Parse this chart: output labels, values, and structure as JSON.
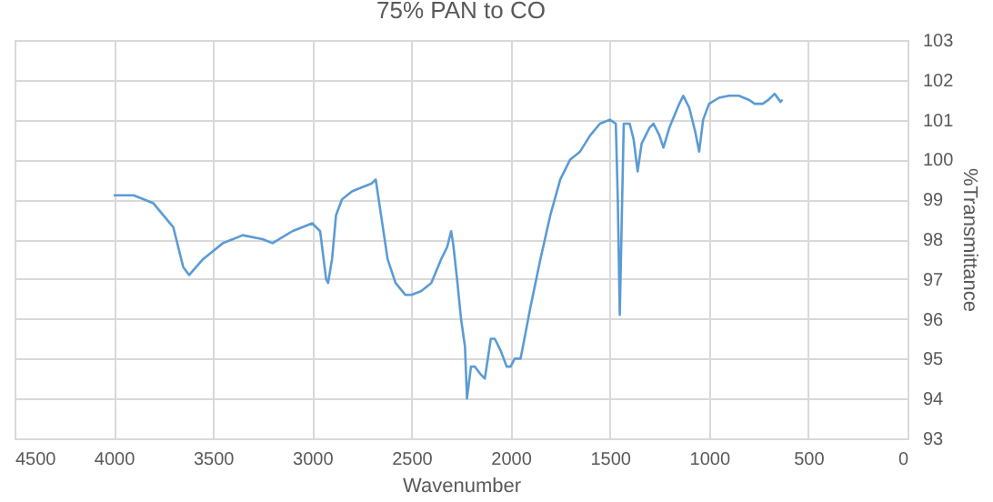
{
  "chart_data": {
    "type": "line",
    "title": "75% PAN to CO",
    "xlabel": "Wavenumber",
    "ylabel": "%Transmittance",
    "grid": true,
    "xlim": [
      4500,
      0
    ],
    "xticks": [
      4500,
      4000,
      3500,
      3000,
      2500,
      2000,
      1500,
      1000,
      500,
      0
    ],
    "ylim": [
      93,
      103
    ],
    "yticks": [
      93,
      94,
      95,
      96,
      97,
      98,
      99,
      100,
      101,
      102,
      103
    ],
    "series": [
      {
        "color": "#5b9bd5",
        "x": [
          4000,
          3900,
          3800,
          3700,
          3650,
          3620,
          3550,
          3450,
          3350,
          3250,
          3200,
          3100,
          3000,
          2960,
          2930,
          2920,
          2900,
          2880,
          2850,
          2800,
          2750,
          2700,
          2680,
          2650,
          2620,
          2580,
          2530,
          2500,
          2450,
          2400,
          2350,
          2320,
          2300,
          2290,
          2270,
          2250,
          2230,
          2220,
          2200,
          2180,
          2150,
          2130,
          2100,
          2080,
          2050,
          2020,
          2000,
          1980,
          1950,
          1900,
          1850,
          1800,
          1750,
          1700,
          1650,
          1600,
          1550,
          1500,
          1470,
          1460,
          1450,
          1440,
          1430,
          1400,
          1380,
          1360,
          1340,
          1300,
          1280,
          1250,
          1230,
          1200,
          1150,
          1130,
          1100,
          1070,
          1050,
          1030,
          1000,
          950,
          900,
          850,
          800,
          770,
          730,
          700,
          670,
          640,
          630
        ],
        "values": [
          99.1,
          99.1,
          98.9,
          98.3,
          97.3,
          97.1,
          97.5,
          97.9,
          98.1,
          98.0,
          97.9,
          98.2,
          98.4,
          98.2,
          97.0,
          96.9,
          97.5,
          98.6,
          99.0,
          99.2,
          99.3,
          99.4,
          99.5,
          98.5,
          97.5,
          96.9,
          96.6,
          96.6,
          96.7,
          96.9,
          97.5,
          97.8,
          98.2,
          97.9,
          97.0,
          96.0,
          95.3,
          94.0,
          94.8,
          94.8,
          94.6,
          94.5,
          95.5,
          95.5,
          95.2,
          94.8,
          94.8,
          95.0,
          95.0,
          96.3,
          97.5,
          98.6,
          99.5,
          100.0,
          100.2,
          100.6,
          100.9,
          101.0,
          100.9,
          99.0,
          96.1,
          98.5,
          100.9,
          100.9,
          100.5,
          99.7,
          100.4,
          100.8,
          100.9,
          100.6,
          100.3,
          100.8,
          101.4,
          101.6,
          101.3,
          100.7,
          100.2,
          101.0,
          101.4,
          101.55,
          101.6,
          101.6,
          101.5,
          101.4,
          101.4,
          101.5,
          101.65,
          101.45,
          101.5
        ]
      }
    ]
  }
}
